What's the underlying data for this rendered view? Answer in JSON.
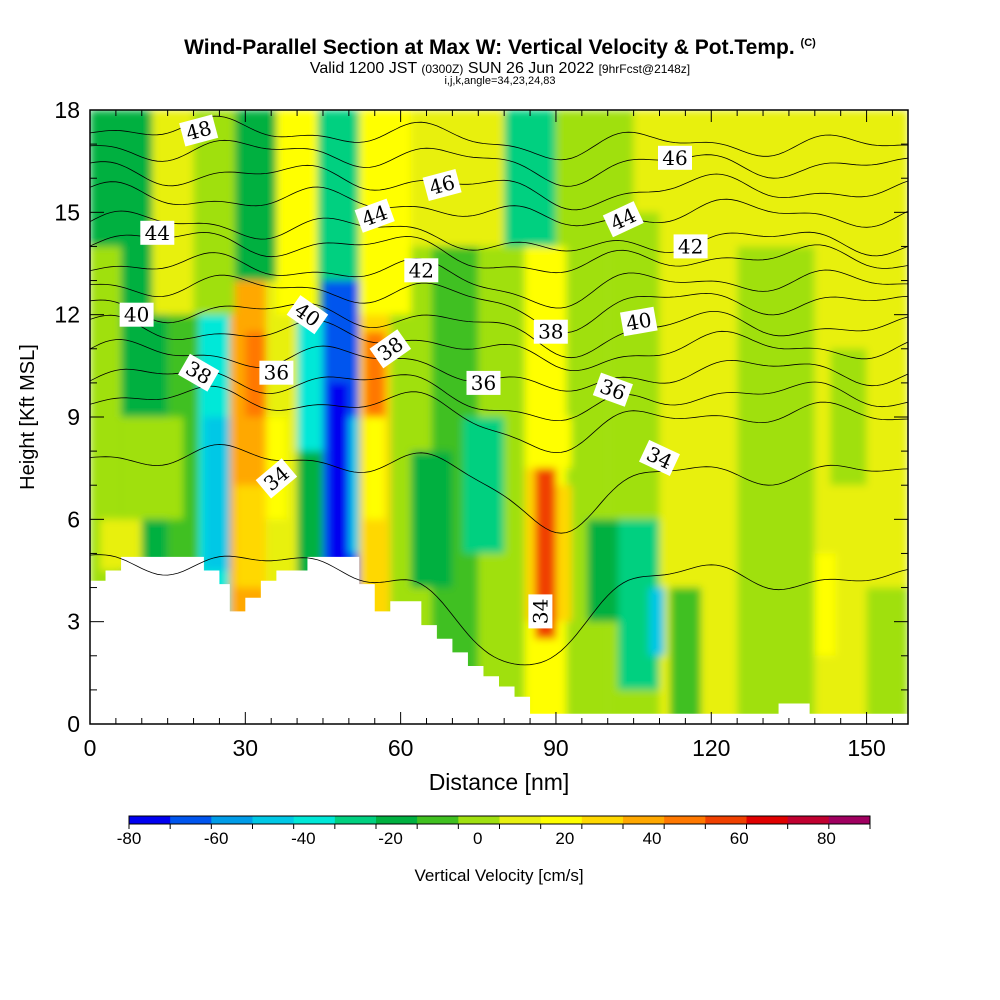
{
  "titles": {
    "main": "Wind-Parallel Section at Max W: Vertical Velocity & Pot.Temp.",
    "copyright": "(C)",
    "valid_prefix": "Valid 1200 JST",
    "valid_zulu": "(0300Z)",
    "valid_date": "SUN 26 Jun 2022",
    "forecast": "[9hrFcst@2148z]",
    "indices": "i,j,k,angle=34,23,24,83"
  },
  "chart_data": {
    "type": "heatmap",
    "xlabel": "Distance [nm]",
    "ylabel": "Height [Kft MSL]",
    "xlim": [
      0,
      158
    ],
    "ylim": [
      0,
      18
    ],
    "x_ticks": [
      0,
      30,
      60,
      90,
      120,
      150
    ],
    "y_ticks": [
      0,
      3,
      6,
      9,
      12,
      15,
      18
    ],
    "grid": false,
    "colorbar": {
      "label": "Vertical Velocity [cm/s]",
      "tick_labels": [
        "-80",
        "-60",
        "-40",
        "-20",
        "0",
        "20",
        "40",
        "60",
        "80"
      ],
      "bins": [
        -80,
        -70,
        -60,
        -50,
        -40,
        -30,
        -20,
        -10,
        0,
        10,
        20,
        30,
        40,
        50,
        60,
        70,
        80,
        90
      ],
      "colors": [
        "#0000f0",
        "#0055ee",
        "#009ce8",
        "#00c8e6",
        "#00e8d8",
        "#00d080",
        "#00b040",
        "#40c020",
        "#a0e010",
        "#e8f010",
        "#ffff00",
        "#ffd800",
        "#ffa800",
        "#ff7800",
        "#f04000",
        "#e00000",
        "#c00030",
        "#a00060"
      ]
    },
    "vertical_velocity_cells": [
      {
        "x0": 0,
        "x1": 6,
        "y0": 0,
        "y1": 18,
        "w": 5
      },
      {
        "x0": 6,
        "x1": 15,
        "y0": 0,
        "y1": 18,
        "w": -15
      },
      {
        "x0": 15,
        "x1": 21,
        "y0": 0,
        "y1": 18,
        "w": -5
      },
      {
        "x0": 21,
        "x1": 27,
        "y0": 0,
        "y1": 18,
        "w": -35
      },
      {
        "x0": 27,
        "x1": 34,
        "y0": 0,
        "y1": 18,
        "w": 45
      },
      {
        "x0": 34,
        "x1": 40,
        "y0": 0,
        "y1": 18,
        "w": 15
      },
      {
        "x0": 40,
        "x1": 45,
        "y0": 0,
        "y1": 18,
        "w": -15
      },
      {
        "x0": 45,
        "x1": 52,
        "y0": 0,
        "y1": 18,
        "w": -65
      },
      {
        "x0": 52,
        "x1": 58,
        "y0": 0,
        "y1": 18,
        "w": 35
      },
      {
        "x0": 58,
        "x1": 66,
        "y0": 0,
        "y1": 18,
        "w": 5
      },
      {
        "x0": 66,
        "x1": 75,
        "y0": 0,
        "y1": 18,
        "w": -5
      },
      {
        "x0": 75,
        "x1": 84,
        "y0": 0,
        "y1": 18,
        "w": 5
      },
      {
        "x0": 84,
        "x1": 92,
        "y0": 0,
        "y1": 18,
        "w": 25
      },
      {
        "x0": 92,
        "x1": 100,
        "y0": 0,
        "y1": 18,
        "w": 5
      },
      {
        "x0": 100,
        "x1": 110,
        "y0": 0,
        "y1": 18,
        "w": 5
      },
      {
        "x0": 110,
        "x1": 125,
        "y0": 0,
        "y1": 18,
        "w": 15
      },
      {
        "x0": 125,
        "x1": 140,
        "y0": 0,
        "y1": 18,
        "w": 5
      },
      {
        "x0": 140,
        "x1": 158,
        "y0": 0,
        "y1": 18,
        "w": 15
      },
      {
        "x0": 0,
        "x1": 12,
        "y0": 14,
        "y1": 18,
        "w": -15
      },
      {
        "x0": 12,
        "x1": 20,
        "y0": 12,
        "y1": 18,
        "w": 15
      },
      {
        "x0": 20,
        "x1": 28,
        "y0": 12,
        "y1": 18,
        "w": 5
      },
      {
        "x0": 28,
        "x1": 36,
        "y0": 13,
        "y1": 18,
        "w": -15
      },
      {
        "x0": 36,
        "x1": 44,
        "y0": 12,
        "y1": 18,
        "w": 25
      },
      {
        "x0": 44,
        "x1": 52,
        "y0": 13,
        "y1": 18,
        "w": -25
      },
      {
        "x0": 52,
        "x1": 62,
        "y0": 12,
        "y1": 18,
        "w": 25
      },
      {
        "x0": 62,
        "x1": 80,
        "y0": 14,
        "y1": 18,
        "w": 15
      },
      {
        "x0": 80,
        "x1": 90,
        "y0": 14,
        "y1": 18,
        "w": -25
      },
      {
        "x0": 90,
        "x1": 105,
        "y0": 14,
        "y1": 18,
        "w": 5
      },
      {
        "x0": 105,
        "x1": 120,
        "y0": 15,
        "y1": 18,
        "w": 15
      },
      {
        "x0": 120,
        "x1": 158,
        "y0": 14,
        "y1": 18,
        "w": 15
      },
      {
        "x0": 6,
        "x1": 18,
        "y0": 6,
        "y1": 9,
        "w": 5
      },
      {
        "x0": 2,
        "x1": 10,
        "y0": 4.5,
        "y1": 6,
        "w": 15
      },
      {
        "x0": 22,
        "x1": 27,
        "y0": 4.5,
        "y1": 9,
        "w": -45
      },
      {
        "x0": 28,
        "x1": 34,
        "y0": 4,
        "y1": 7,
        "w": 35
      },
      {
        "x0": 30,
        "x1": 34,
        "y0": 9,
        "y1": 11.5,
        "w": 55
      },
      {
        "x0": 34,
        "x1": 38,
        "y0": 6,
        "y1": 9,
        "w": 25
      },
      {
        "x0": 40,
        "x1": 45,
        "y0": 8,
        "y1": 12,
        "w": -35
      },
      {
        "x0": 46,
        "x1": 50,
        "y0": 4.5,
        "y1": 10,
        "w": -75
      },
      {
        "x0": 50,
        "x1": 52,
        "y0": 5,
        "y1": 9,
        "w": -45
      },
      {
        "x0": 53,
        "x1": 57,
        "y0": 9,
        "y1": 11.5,
        "w": 55
      },
      {
        "x0": 53,
        "x1": 57,
        "y0": 6,
        "y1": 9,
        "w": 25
      },
      {
        "x0": 62,
        "x1": 70,
        "y0": 4,
        "y1": 8,
        "w": -15
      },
      {
        "x0": 72,
        "x1": 80,
        "y0": 5,
        "y1": 9,
        "w": -25
      },
      {
        "x0": 84,
        "x1": 87,
        "y0": 3,
        "y1": 8,
        "w": 35
      },
      {
        "x0": 86,
        "x1": 90,
        "y0": 2.5,
        "y1": 7.5,
        "w": 65
      },
      {
        "x0": 90,
        "x1": 93,
        "y0": 3,
        "y1": 7,
        "w": 35
      },
      {
        "x0": 84,
        "x1": 93,
        "y0": 7.5,
        "y1": 9,
        "w": 25
      },
      {
        "x0": 96,
        "x1": 102,
        "y0": 3,
        "y1": 6,
        "w": -15
      },
      {
        "x0": 102,
        "x1": 110,
        "y0": 1,
        "y1": 6,
        "w": -25
      },
      {
        "x0": 108,
        "x1": 111,
        "y0": 2,
        "y1": 4,
        "w": -45
      },
      {
        "x0": 112,
        "x1": 118,
        "y0": 0,
        "y1": 4,
        "w": -5
      },
      {
        "x0": 130,
        "x1": 137,
        "y0": 6,
        "y1": 13,
        "w": 5
      },
      {
        "x0": 143,
        "x1": 150,
        "y0": 7,
        "y1": 11,
        "w": 5
      },
      {
        "x0": 140,
        "x1": 144,
        "y0": 2,
        "y1": 5,
        "w": 25
      },
      {
        "x0": 150,
        "x1": 158,
        "y0": 0,
        "y1": 4,
        "w": 5
      }
    ],
    "terrain_steps": [
      [
        0,
        4.2
      ],
      [
        3,
        4.5
      ],
      [
        6,
        4.9
      ],
      [
        22,
        4.5
      ],
      [
        25,
        4.1
      ],
      [
        27,
        3.3
      ],
      [
        30,
        3.7
      ],
      [
        33,
        4.2
      ],
      [
        36,
        4.5
      ],
      [
        42,
        4.9
      ],
      [
        52,
        4.1
      ],
      [
        55,
        3.3
      ],
      [
        58,
        3.6
      ],
      [
        64,
        2.9
      ],
      [
        67,
        2.5
      ],
      [
        70,
        2.1
      ],
      [
        73,
        1.7
      ],
      [
        76,
        1.4
      ],
      [
        79,
        1.1
      ],
      [
        82,
        0.8
      ],
      [
        85,
        0.3
      ],
      [
        133,
        0.6
      ],
      [
        139,
        0.3
      ],
      [
        158,
        0.3
      ]
    ],
    "theta_contours": [
      {
        "level": 34,
        "base": 4.5,
        "ax": 82,
        "amp": 3.0,
        "label": "34",
        "label_at": [
          [
            36,
            7.2,
            -40
          ],
          [
            87,
            3.3,
            -90
          ],
          [
            110,
            7.8,
            25
          ]
        ]
      },
      {
        "level": 35,
        "base": 7.6,
        "ax": 90,
        "amp": 1.6,
        "label": null,
        "label_at": []
      },
      {
        "level": 36,
        "base": 9.3,
        "ax": 90,
        "amp": 1.1,
        "label": "36",
        "label_at": [
          [
            36,
            10.3,
            0
          ],
          [
            76,
            10.0,
            0
          ],
          [
            101,
            9.8,
            20
          ]
        ]
      },
      {
        "level": 37,
        "base": 9.9,
        "ax": 90,
        "amp": 1.0,
        "label": null,
        "label_at": []
      },
      {
        "level": 38,
        "base": 10.6,
        "ax": 90,
        "amp": 0.9,
        "label": "38",
        "label_at": [
          [
            21,
            10.3,
            30
          ],
          [
            58,
            11.0,
            -35
          ],
          [
            89,
            11.5,
            0
          ]
        ]
      },
      {
        "level": 39,
        "base": 11.3,
        "ax": 90,
        "amp": 0.8,
        "label": null,
        "label_at": []
      },
      {
        "level": 40,
        "base": 11.9,
        "ax": 90,
        "amp": 0.8,
        "label": "40",
        "label_at": [
          [
            9,
            12.0,
            0
          ],
          [
            42,
            12.0,
            35
          ],
          [
            106,
            11.8,
            -10
          ]
        ]
      },
      {
        "level": 41,
        "base": 12.6,
        "ax": 90,
        "amp": 0.7,
        "label": null,
        "label_at": []
      },
      {
        "level": 42,
        "base": 13.2,
        "ax": 90,
        "amp": 0.7,
        "label": "42",
        "label_at": [
          [
            64,
            13.3,
            0
          ],
          [
            116,
            14.0,
            0
          ]
        ]
      },
      {
        "level": 43,
        "base": 13.9,
        "ax": 90,
        "amp": 0.6,
        "label": null,
        "label_at": []
      },
      {
        "level": 44,
        "base": 14.4,
        "ax": 90,
        "amp": 0.6,
        "label": "44",
        "label_at": [
          [
            13,
            14.4,
            0
          ],
          [
            55,
            14.9,
            -20
          ],
          [
            103,
            14.8,
            -25
          ]
        ]
      },
      {
        "level": 45,
        "base": 15.2,
        "ax": 90,
        "amp": 0.5,
        "label": null,
        "label_at": []
      },
      {
        "level": 46,
        "base": 15.9,
        "ax": 90,
        "amp": 0.5,
        "label": "46",
        "label_at": [
          [
            68,
            15.8,
            -15
          ],
          [
            113,
            16.6,
            0
          ]
        ]
      },
      {
        "level": 47,
        "base": 16.6,
        "ax": 90,
        "amp": 0.4,
        "label": null,
        "label_at": []
      },
      {
        "level": 48,
        "base": 17.2,
        "ax": 90,
        "amp": 0.3,
        "label": "48",
        "label_at": [
          [
            21,
            17.4,
            -15
          ]
        ]
      }
    ]
  }
}
